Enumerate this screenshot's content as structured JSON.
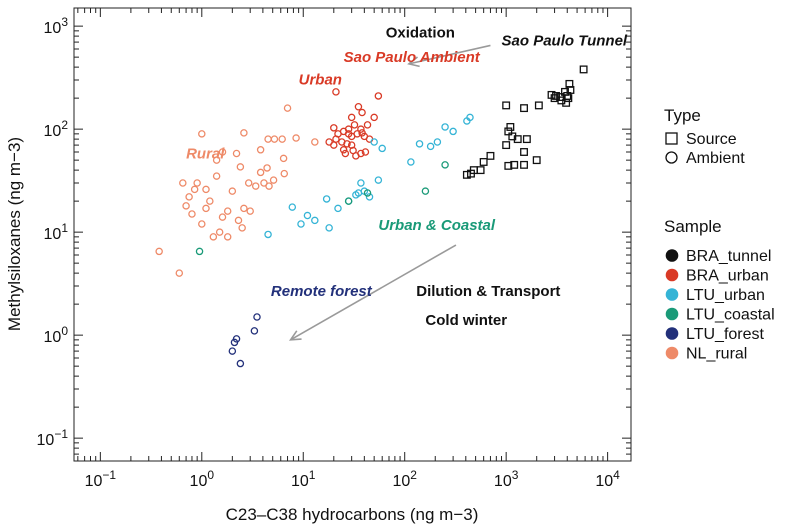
{
  "chart_data": {
    "type": "scatter",
    "xlabel": "C23–C38 hydrocarbons (ng m−3)",
    "ylabel": "Methylsiloxanes (ng m−3)",
    "xscale": "log",
    "yscale": "log",
    "xlim": [
      0.055,
      17000
    ],
    "ylim": [
      0.06,
      1500
    ],
    "xticks": [
      {
        "value": 0.1,
        "base": "10",
        "exp": "−1"
      },
      {
        "value": 1,
        "base": "10",
        "exp": "0"
      },
      {
        "value": 10,
        "base": "10",
        "exp": "1"
      },
      {
        "value": 100,
        "base": "10",
        "exp": "2"
      },
      {
        "value": 1000,
        "base": "10",
        "exp": "3"
      },
      {
        "value": 10000,
        "base": "10",
        "exp": "4"
      }
    ],
    "yticks": [
      {
        "value": 0.1,
        "base": "10",
        "exp": "−1"
      },
      {
        "value": 1,
        "base": "10",
        "exp": "0"
      },
      {
        "value": 10,
        "base": "10",
        "exp": "1"
      },
      {
        "value": 100,
        "base": "10",
        "exp": "2"
      },
      {
        "value": 1000,
        "base": "10",
        "exp": "3"
      }
    ],
    "legend_type": {
      "title": "Type",
      "items": [
        {
          "label": "Source",
          "marker": "square"
        },
        {
          "label": "Ambient",
          "marker": "circle"
        }
      ]
    },
    "legend_sample": {
      "title": "Sample",
      "items": [
        {
          "label": "BRA_tunnel",
          "color": "#111111"
        },
        {
          "label": "BRA_urban",
          "color": "#d93a26"
        },
        {
          "label": "LTU_urban",
          "color": "#35b4d6"
        },
        {
          "label": "LTU_coastal",
          "color": "#1a9a78"
        },
        {
          "label": "LTU_forest",
          "color": "#22307a"
        },
        {
          "label": "NL_rural",
          "color": "#ee8a68"
        }
      ]
    },
    "annotations": [
      {
        "text": "Oxidation",
        "x": 65,
        "y": 780,
        "color": "#111111",
        "italic": false
      },
      {
        "text": "Sao Paulo Tunnel",
        "x": 900,
        "y": 650,
        "color": "#111111",
        "italic": true
      },
      {
        "text": "Sao Paulo Ambient",
        "x": 25,
        "y": 450,
        "color": "#d93a26",
        "italic": true
      },
      {
        "text": "Urban",
        "x": 9,
        "y": 270,
        "color": "#d93a26",
        "italic": true
      },
      {
        "text": "Rural",
        "x": 0.7,
        "y": 52,
        "color": "#ee8a68",
        "italic": true
      },
      {
        "text": "Urban & Coastal",
        "x": 55,
        "y": 10.5,
        "color": "#1a9a78",
        "italic": true
      },
      {
        "text": "Remote forest",
        "x": 4.8,
        "y": 2.4,
        "color": "#22307a",
        "italic": true
      },
      {
        "text": "Dilution & Transport",
        "x": 130,
        "y": 2.4,
        "color": "#111111",
        "italic": false
      },
      {
        "text": "Cold winter",
        "x": 160,
        "y": 1.25,
        "color": "#111111",
        "italic": false
      }
    ],
    "arrows": [
      {
        "from": [
          700,
          650
        ],
        "to": [
          110,
          430
        ]
      },
      {
        "from": [
          320,
          7.5
        ],
        "to": [
          7.5,
          0.9
        ]
      }
    ],
    "series": [
      {
        "name": "BRA_tunnel",
        "marker": "square",
        "color": "#111111",
        "points": [
          [
            5800,
            380
          ],
          [
            4200,
            275
          ],
          [
            4300,
            240
          ],
          [
            3800,
            230
          ],
          [
            4000,
            210
          ],
          [
            3400,
            205
          ],
          [
            3100,
            210
          ],
          [
            3500,
            190
          ],
          [
            4100,
            200
          ],
          [
            3900,
            180
          ],
          [
            2800,
            215
          ],
          [
            3000,
            200
          ],
          [
            2100,
            170
          ],
          [
            1500,
            160
          ],
          [
            1000,
            170
          ],
          [
            1100,
            105
          ],
          [
            1050,
            95
          ],
          [
            1150,
            85
          ],
          [
            1300,
            80
          ],
          [
            1600,
            80
          ],
          [
            1000,
            70
          ],
          [
            1500,
            60
          ],
          [
            2000,
            50
          ],
          [
            1500,
            45
          ],
          [
            1200,
            45
          ],
          [
            1050,
            44
          ],
          [
            700,
            55
          ],
          [
            600,
            48
          ],
          [
            560,
            40
          ],
          [
            480,
            40
          ],
          [
            450,
            37
          ],
          [
            410,
            36
          ]
        ]
      },
      {
        "name": "BRA_urban",
        "marker": "circle",
        "color": "#d93a26",
        "points": [
          [
            21,
            230
          ],
          [
            20,
            103
          ],
          [
            35,
            165
          ],
          [
            30,
            130
          ],
          [
            38,
            145
          ],
          [
            43,
            110
          ],
          [
            55,
            210
          ],
          [
            50,
            130
          ],
          [
            37,
            100
          ],
          [
            32,
            110
          ],
          [
            28,
            100
          ],
          [
            25,
            95
          ],
          [
            22,
            90
          ],
          [
            21,
            80
          ],
          [
            24,
            75
          ],
          [
            18,
            75
          ],
          [
            20,
            70
          ],
          [
            27,
            72
          ],
          [
            30,
            70
          ],
          [
            31,
            62
          ],
          [
            26,
            58
          ],
          [
            33,
            55
          ],
          [
            37,
            58
          ],
          [
            40,
            85
          ],
          [
            45,
            80
          ],
          [
            38,
            92
          ],
          [
            41,
            60
          ],
          [
            25,
            63
          ],
          [
            30,
            85
          ],
          [
            28,
            90
          ],
          [
            34,
            90
          ]
        ]
      },
      {
        "name": "LTU_urban",
        "marker": "circle",
        "color": "#35b4d6",
        "points": [
          [
            440,
            130
          ],
          [
            410,
            120
          ],
          [
            300,
            95
          ],
          [
            250,
            105
          ],
          [
            210,
            75
          ],
          [
            180,
            68
          ],
          [
            140,
            72
          ],
          [
            115,
            48
          ],
          [
            55,
            32
          ],
          [
            45,
            22
          ],
          [
            40,
            25
          ],
          [
            35,
            24
          ],
          [
            33,
            23
          ],
          [
            37,
            30
          ],
          [
            28,
            20
          ],
          [
            22,
            17
          ],
          [
            17,
            21
          ],
          [
            7.8,
            17.5
          ],
          [
            11,
            14.5
          ],
          [
            13,
            13
          ],
          [
            18,
            11
          ],
          [
            9.5,
            12
          ],
          [
            4.5,
            9.5
          ],
          [
            60,
            65
          ],
          [
            50,
            75
          ]
        ]
      },
      {
        "name": "LTU_coastal",
        "marker": "circle",
        "color": "#1a9a78",
        "points": [
          [
            250,
            45
          ],
          [
            160,
            25
          ],
          [
            43,
            24
          ],
          [
            28,
            20
          ],
          [
            0.95,
            6.5
          ]
        ]
      },
      {
        "name": "LTU_forest",
        "marker": "circle",
        "color": "#22307a",
        "points": [
          [
            3.5,
            1.5
          ],
          [
            3.3,
            1.1
          ],
          [
            2.2,
            0.92
          ],
          [
            2.1,
            0.85
          ],
          [
            2.0,
            0.7
          ],
          [
            2.4,
            0.53
          ]
        ]
      },
      {
        "name": "NL_rural",
        "marker": "circle",
        "color": "#ee8a68",
        "points": [
          [
            7,
            160
          ],
          [
            4.5,
            80
          ],
          [
            5.2,
            80
          ],
          [
            6.2,
            80
          ],
          [
            8.5,
            82
          ],
          [
            13,
            75
          ],
          [
            2.6,
            92
          ],
          [
            1.0,
            90
          ],
          [
            3.8,
            63
          ],
          [
            2.2,
            58
          ],
          [
            1.6,
            60
          ],
          [
            1.4,
            50
          ],
          [
            2.4,
            43
          ],
          [
            6.4,
            52
          ],
          [
            4.4,
            42
          ],
          [
            3.8,
            38
          ],
          [
            4.6,
            28
          ],
          [
            4.1,
            30
          ],
          [
            2.9,
            30
          ],
          [
            3.4,
            28
          ],
          [
            5.1,
            32
          ],
          [
            6.5,
            37
          ],
          [
            0.65,
            30
          ],
          [
            0.85,
            26
          ],
          [
            0.9,
            30
          ],
          [
            1.1,
            26
          ],
          [
            0.75,
            22
          ],
          [
            1.4,
            35
          ],
          [
            2.0,
            25
          ],
          [
            1.2,
            20
          ],
          [
            0.7,
            18
          ],
          [
            1.1,
            17
          ],
          [
            0.8,
            15
          ],
          [
            1.8,
            16
          ],
          [
            2.6,
            17
          ],
          [
            1.6,
            14
          ],
          [
            2.3,
            13
          ],
          [
            3.0,
            16
          ],
          [
            2.5,
            11
          ],
          [
            1.5,
            10
          ],
          [
            1.3,
            9
          ],
          [
            1.0,
            12
          ],
          [
            1.8,
            9
          ],
          [
            0.6,
            4
          ],
          [
            0.38,
            6.5
          ]
        ]
      }
    ]
  }
}
